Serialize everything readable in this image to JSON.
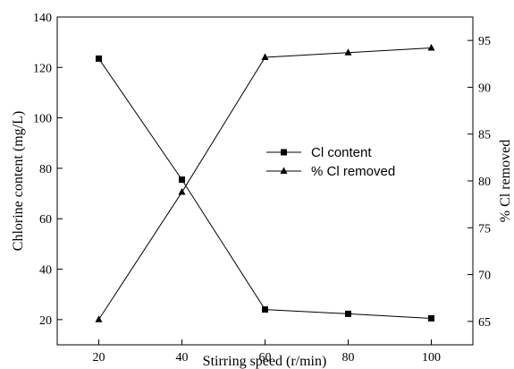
{
  "chart_data": {
    "type": "line",
    "x": [
      20,
      40,
      60,
      80,
      100
    ],
    "xlabel": "Stirring speed (r/min)",
    "ylabel_left": "Chlorine content (mg/L)",
    "ylabel_right": "% Cl removed",
    "xlim": [
      10,
      110
    ],
    "ylim_left": [
      10,
      140
    ],
    "ylim_right": [
      62.5,
      97.5
    ],
    "xticks": [
      20,
      40,
      60,
      80,
      100
    ],
    "yticks_left": [
      20,
      40,
      60,
      80,
      100,
      120,
      140
    ],
    "yticks_right": [
      65,
      70,
      75,
      80,
      85,
      90,
      95
    ],
    "grid": false,
    "legend_position": "center-right",
    "series": [
      {
        "name": "Cl content",
        "axis": "left",
        "marker": "square",
        "values": [
          123.5,
          75.5,
          24,
          22.3,
          20.5
        ]
      },
      {
        "name": "% Cl removed",
        "axis": "right",
        "marker": "triangle",
        "values": [
          65.2,
          78.8,
          93.2,
          93.7,
          94.2
        ]
      }
    ]
  }
}
